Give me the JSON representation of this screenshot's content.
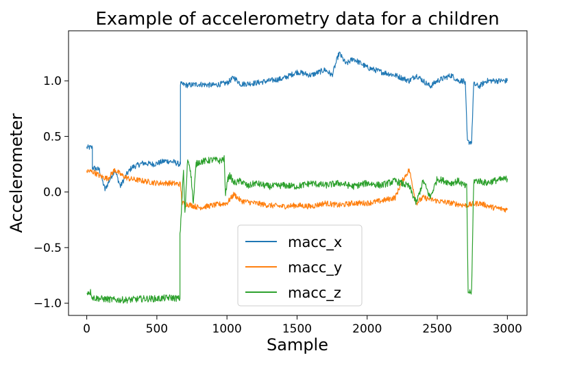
{
  "chart_data": {
    "type": "line",
    "title": "Example of accelerometry data for a children",
    "xlabel": "Sample",
    "ylabel": "Accelerometer",
    "xlim": [
      -130,
      3140
    ],
    "ylim": [
      -1.11,
      1.45
    ],
    "xticks": [
      0,
      500,
      1000,
      1500,
      2000,
      2500,
      3000
    ],
    "xtick_labels": [
      "0",
      "500",
      "1000",
      "1500",
      "2000",
      "2500",
      "3000"
    ],
    "yticks": [
      -1.0,
      -0.5,
      0.0,
      0.5,
      1.0
    ],
    "ytick_labels": [
      "−1.0",
      "−0.5",
      "0.0",
      "0.5",
      "1.0"
    ],
    "grid": false,
    "legend_position": "lower-center",
    "series": [
      {
        "name": "macc_x",
        "color": "#1f77b4",
        "noise": 0.025,
        "points": [
          [
            0,
            0.4
          ],
          [
            40,
            0.4
          ],
          [
            40,
            0.22
          ],
          [
            90,
            0.2
          ],
          [
            130,
            0.02
          ],
          [
            160,
            0.1
          ],
          [
            200,
            0.2
          ],
          [
            240,
            0.05
          ],
          [
            280,
            0.15
          ],
          [
            320,
            0.22
          ],
          [
            400,
            0.26
          ],
          [
            480,
            0.25
          ],
          [
            560,
            0.28
          ],
          [
            620,
            0.27
          ],
          [
            660,
            0.25
          ],
          [
            668,
            0.25
          ],
          [
            668,
            0.97
          ],
          [
            720,
            0.96
          ],
          [
            800,
            0.97
          ],
          [
            900,
            0.96
          ],
          [
            1000,
            0.98
          ],
          [
            1050,
            1.03
          ],
          [
            1100,
            0.97
          ],
          [
            1200,
            0.98
          ],
          [
            1300,
            1.0
          ],
          [
            1400,
            1.02
          ],
          [
            1500,
            1.08
          ],
          [
            1600,
            1.05
          ],
          [
            1700,
            1.1
          ],
          [
            1750,
            1.05
          ],
          [
            1800,
            1.25
          ],
          [
            1850,
            1.15
          ],
          [
            1900,
            1.2
          ],
          [
            2000,
            1.12
          ],
          [
            2100,
            1.08
          ],
          [
            2200,
            1.05
          ],
          [
            2300,
            1.0
          ],
          [
            2350,
            1.05
          ],
          [
            2400,
            1.0
          ],
          [
            2450,
            0.95
          ],
          [
            2500,
            1.0
          ],
          [
            2600,
            1.05
          ],
          [
            2650,
            1.0
          ],
          [
            2690,
            1.0
          ],
          [
            2700,
            0.97
          ],
          [
            2715,
            0.45
          ],
          [
            2745,
            0.45
          ],
          [
            2760,
            0.97
          ],
          [
            2800,
            0.95
          ],
          [
            2850,
            1.0
          ],
          [
            2900,
            1.0
          ],
          [
            3000,
            1.0
          ]
        ]
      },
      {
        "name": "macc_y",
        "color": "#ff7f0e",
        "noise": 0.025,
        "points": [
          [
            0,
            0.19
          ],
          [
            50,
            0.18
          ],
          [
            100,
            0.14
          ],
          [
            150,
            0.12
          ],
          [
            200,
            0.2
          ],
          [
            250,
            0.15
          ],
          [
            300,
            0.12
          ],
          [
            400,
            0.1
          ],
          [
            500,
            0.08
          ],
          [
            600,
            0.08
          ],
          [
            668,
            0.07
          ],
          [
            680,
            -0.1
          ],
          [
            750,
            -0.12
          ],
          [
            800,
            -0.14
          ],
          [
            900,
            -0.12
          ],
          [
            1000,
            -0.1
          ],
          [
            1050,
            -0.02
          ],
          [
            1100,
            -0.08
          ],
          [
            1200,
            -0.1
          ],
          [
            1300,
            -0.12
          ],
          [
            1400,
            -0.13
          ],
          [
            1500,
            -0.12
          ],
          [
            1600,
            -0.13
          ],
          [
            1700,
            -0.1
          ],
          [
            1800,
            -0.12
          ],
          [
            1900,
            -0.1
          ],
          [
            2000,
            -0.1
          ],
          [
            2100,
            -0.08
          ],
          [
            2200,
            -0.05
          ],
          [
            2250,
            0.1
          ],
          [
            2300,
            0.2
          ],
          [
            2350,
            -0.1
          ],
          [
            2400,
            -0.05
          ],
          [
            2500,
            -0.08
          ],
          [
            2600,
            -0.1
          ],
          [
            2700,
            -0.12
          ],
          [
            2800,
            -0.1
          ],
          [
            2900,
            -0.14
          ],
          [
            3000,
            -0.16
          ]
        ]
      },
      {
        "name": "macc_z",
        "color": "#2ca02c",
        "noise": 0.03,
        "points": [
          [
            0,
            -0.9
          ],
          [
            30,
            -0.9
          ],
          [
            40,
            -0.95
          ],
          [
            100,
            -0.96
          ],
          [
            200,
            -0.97
          ],
          [
            300,
            -0.97
          ],
          [
            400,
            -0.96
          ],
          [
            500,
            -0.96
          ],
          [
            600,
            -0.95
          ],
          [
            665,
            -0.96
          ],
          [
            665,
            -0.4
          ],
          [
            690,
            0.2
          ],
          [
            700,
            -0.2
          ],
          [
            720,
            0.3
          ],
          [
            740,
            0.2
          ],
          [
            760,
            -0.1
          ],
          [
            780,
            0.25
          ],
          [
            800,
            0.27
          ],
          [
            850,
            0.28
          ],
          [
            900,
            0.29
          ],
          [
            950,
            0.28
          ],
          [
            980,
            0.3
          ],
          [
            990,
            -0.05
          ],
          [
            1000,
            0.1
          ],
          [
            1020,
            0.15
          ],
          [
            1050,
            0.08
          ],
          [
            1100,
            0.1
          ],
          [
            1150,
            0.05
          ],
          [
            1200,
            0.08
          ],
          [
            1300,
            0.05
          ],
          [
            1400,
            0.06
          ],
          [
            1500,
            0.05
          ],
          [
            1600,
            0.08
          ],
          [
            1700,
            0.06
          ],
          [
            1800,
            0.08
          ],
          [
            1900,
            0.05
          ],
          [
            2000,
            0.08
          ],
          [
            2100,
            0.06
          ],
          [
            2200,
            0.1
          ],
          [
            2300,
            0.05
          ],
          [
            2350,
            -0.1
          ],
          [
            2400,
            0.1
          ],
          [
            2450,
            -0.05
          ],
          [
            2500,
            0.12
          ],
          [
            2550,
            0.1
          ],
          [
            2600,
            0.08
          ],
          [
            2650,
            0.1
          ],
          [
            2700,
            0.05
          ],
          [
            2710,
            0.05
          ],
          [
            2720,
            -0.9
          ],
          [
            2745,
            -0.9
          ],
          [
            2760,
            0.1
          ],
          [
            2800,
            0.1
          ],
          [
            2850,
            0.08
          ],
          [
            2900,
            0.1
          ],
          [
            3000,
            0.12
          ]
        ]
      }
    ]
  }
}
